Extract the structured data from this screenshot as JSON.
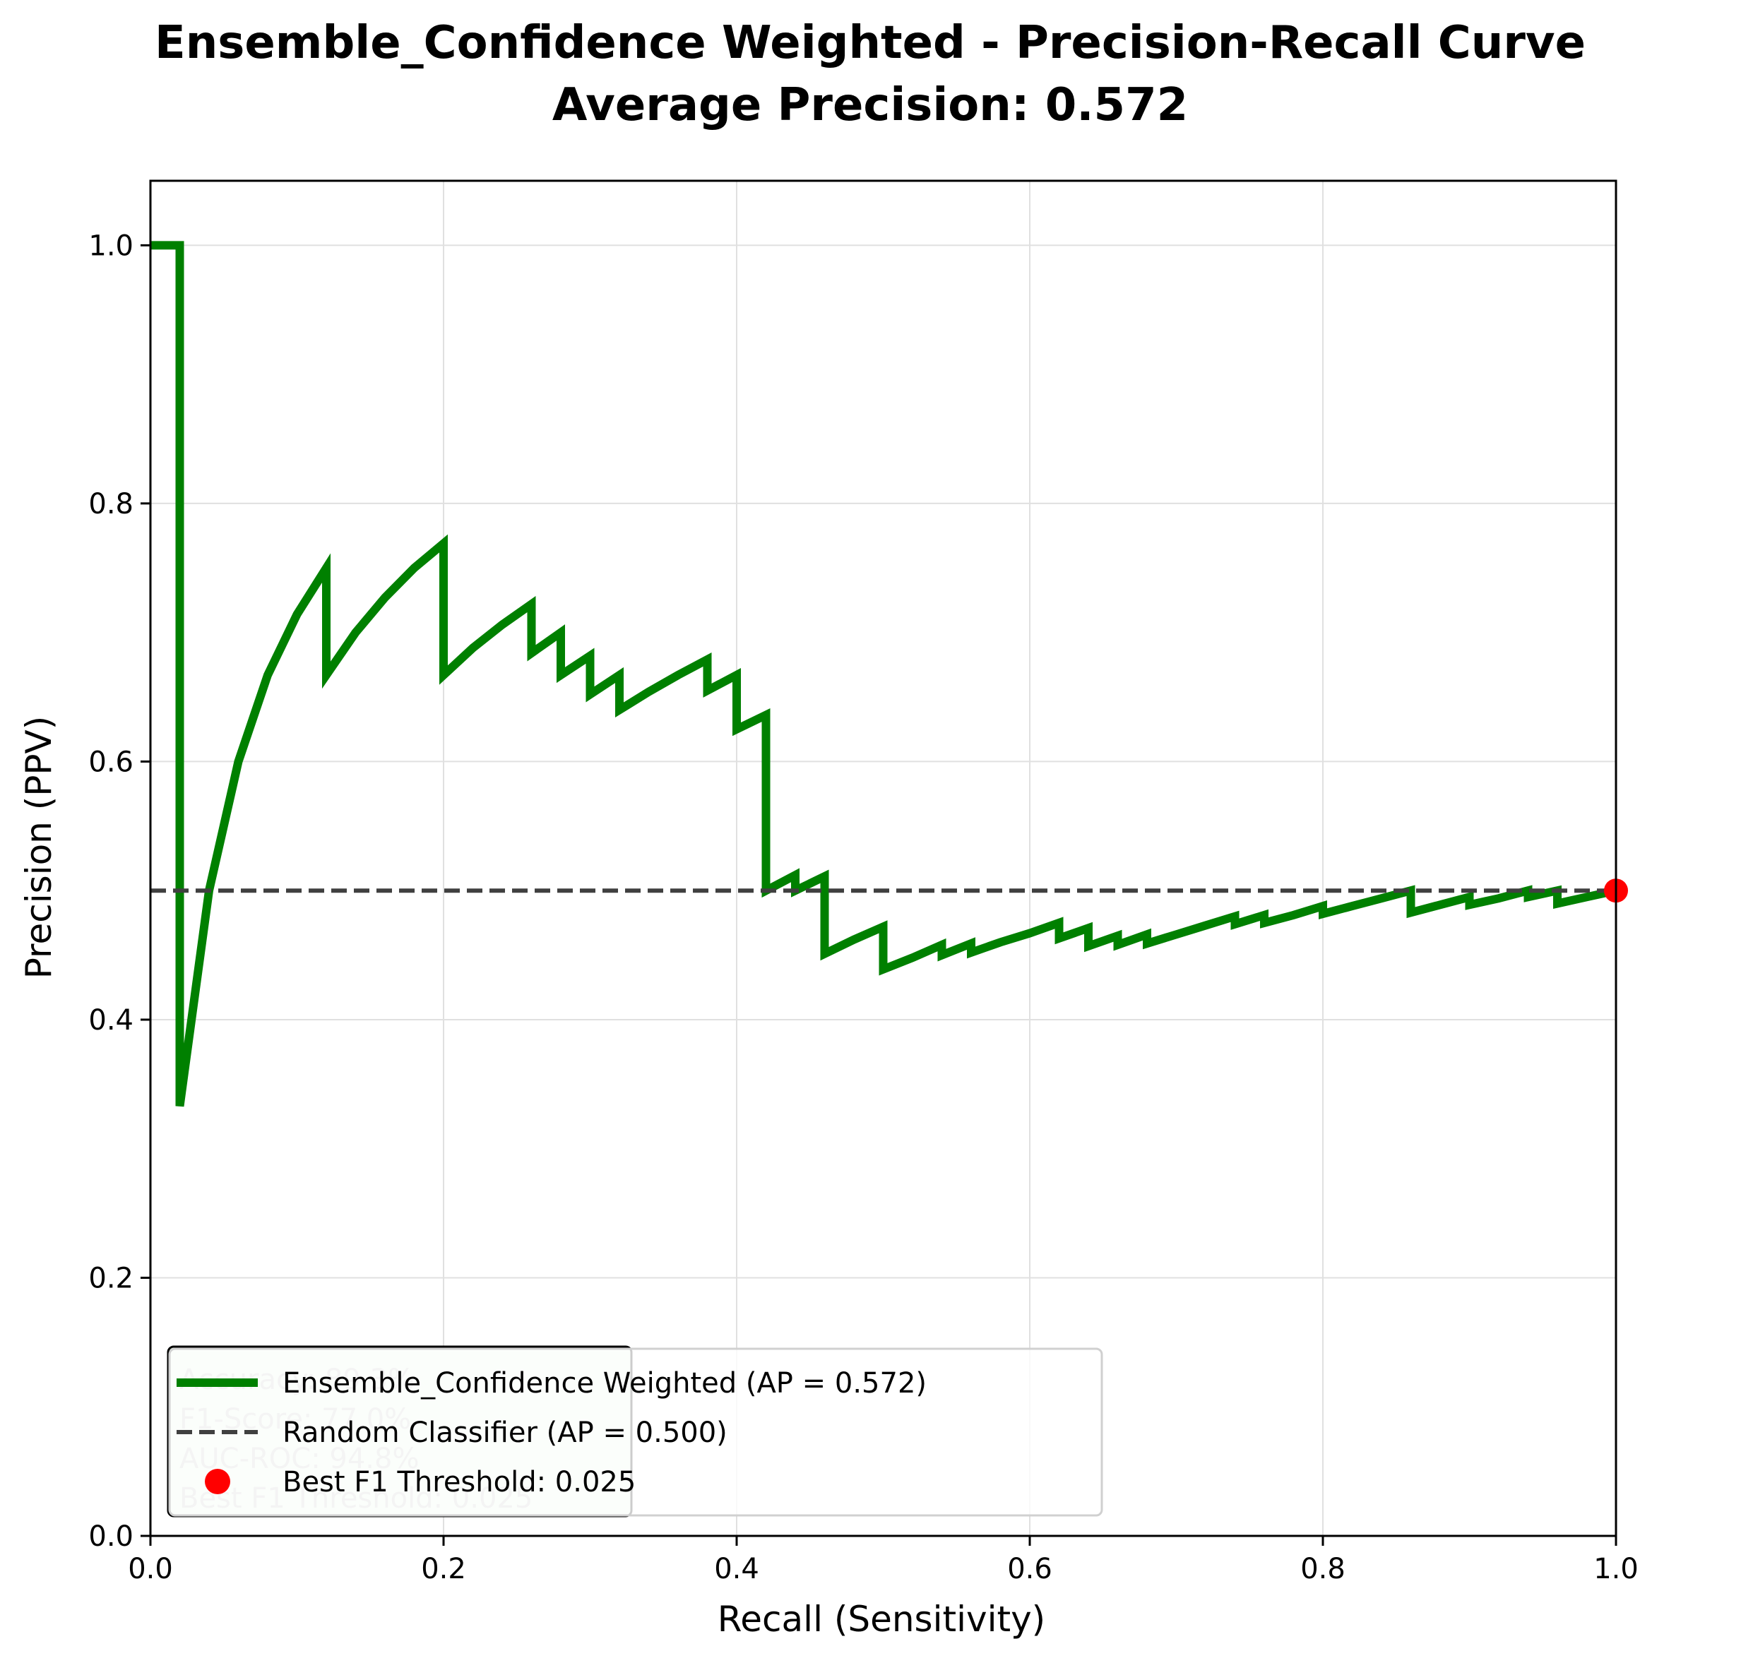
{
  "chart_data": {
    "type": "line",
    "title_line1": "Ensemble_Confidence Weighted - Precision-Recall Curve",
    "title_line2": "Average Precision: 0.572",
    "xlabel": "Recall (Sensitivity)",
    "ylabel": "Precision (PPV)",
    "xlim": [
      0.0,
      1.0
    ],
    "ylim": [
      0.0,
      1.05
    ],
    "x_ticks": [
      0.0,
      0.2,
      0.4,
      0.6,
      0.8,
      1.0
    ],
    "x_tick_labels": [
      "0.0",
      "0.2",
      "0.4",
      "0.6",
      "0.8",
      "1.0"
    ],
    "y_ticks": [
      0.0,
      0.2,
      0.4,
      0.6,
      0.8,
      1.0
    ],
    "y_tick_labels": [
      "0.0",
      "0.2",
      "0.4",
      "0.6",
      "0.8",
      "1.0"
    ],
    "grid": true,
    "legend_position": "lower-left",
    "stats_box": [
      "Accuracy: 89.3%",
      "F1-Score: 77.0%",
      "AUC-ROC: 94.8%",
      "Best F1 Threshold: 0.025"
    ],
    "series": [
      {
        "name": "Ensemble_Confidence Weighted (AP = 0.572)",
        "color": "#008000",
        "style": "solid",
        "points": [
          [
            0.0,
            1.0
          ],
          [
            0.02,
            1.0
          ],
          [
            0.02,
            0.333
          ],
          [
            0.04,
            0.5
          ],
          [
            0.06,
            0.6
          ],
          [
            0.08,
            0.667
          ],
          [
            0.1,
            0.714
          ],
          [
            0.12,
            0.75
          ],
          [
            0.12,
            0.667
          ],
          [
            0.14,
            0.7
          ],
          [
            0.16,
            0.727
          ],
          [
            0.18,
            0.75
          ],
          [
            0.2,
            0.769
          ],
          [
            0.2,
            0.667
          ],
          [
            0.22,
            0.688
          ],
          [
            0.24,
            0.706
          ],
          [
            0.26,
            0.722
          ],
          [
            0.26,
            0.684
          ],
          [
            0.28,
            0.7
          ],
          [
            0.28,
            0.667
          ],
          [
            0.3,
            0.682
          ],
          [
            0.3,
            0.652
          ],
          [
            0.32,
            0.667
          ],
          [
            0.32,
            0.64
          ],
          [
            0.34,
            0.654
          ],
          [
            0.36,
            0.667
          ],
          [
            0.38,
            0.679
          ],
          [
            0.38,
            0.655
          ],
          [
            0.4,
            0.667
          ],
          [
            0.4,
            0.625
          ],
          [
            0.42,
            0.636
          ],
          [
            0.42,
            0.5
          ],
          [
            0.44,
            0.512
          ],
          [
            0.44,
            0.5
          ],
          [
            0.46,
            0.511
          ],
          [
            0.46,
            0.451
          ],
          [
            0.48,
            0.462
          ],
          [
            0.5,
            0.472
          ],
          [
            0.5,
            0.439
          ],
          [
            0.52,
            0.448
          ],
          [
            0.54,
            0.458
          ],
          [
            0.54,
            0.45
          ],
          [
            0.56,
            0.459
          ],
          [
            0.56,
            0.452
          ],
          [
            0.58,
            0.46
          ],
          [
            0.6,
            0.467
          ],
          [
            0.62,
            0.475
          ],
          [
            0.62,
            0.463
          ],
          [
            0.64,
            0.471
          ],
          [
            0.64,
            0.457
          ],
          [
            0.66,
            0.465
          ],
          [
            0.66,
            0.458
          ],
          [
            0.68,
            0.466
          ],
          [
            0.68,
            0.459
          ],
          [
            0.7,
            0.466
          ],
          [
            0.72,
            0.473
          ],
          [
            0.74,
            0.48
          ],
          [
            0.74,
            0.474
          ],
          [
            0.76,
            0.481
          ],
          [
            0.76,
            0.475
          ],
          [
            0.78,
            0.481
          ],
          [
            0.8,
            0.488
          ],
          [
            0.8,
            0.482
          ],
          [
            0.82,
            0.488
          ],
          [
            0.84,
            0.494
          ],
          [
            0.86,
            0.5
          ],
          [
            0.86,
            0.483
          ],
          [
            0.88,
            0.489
          ],
          [
            0.9,
            0.495
          ],
          [
            0.9,
            0.489
          ],
          [
            0.92,
            0.494
          ],
          [
            0.94,
            0.5
          ],
          [
            0.94,
            0.495
          ],
          [
            0.96,
            0.5
          ],
          [
            0.96,
            0.49
          ],
          [
            0.98,
            0.495
          ],
          [
            1.0,
            0.5
          ]
        ]
      },
      {
        "name": "Random Classifier (AP = 0.500)",
        "color": "#404040",
        "style": "dashed",
        "points": [
          [
            0.0,
            0.5
          ],
          [
            1.0,
            0.5
          ]
        ]
      }
    ],
    "best_point": {
      "name": "Best F1 Threshold: 0.025",
      "x": 1.0,
      "y": 0.5,
      "color": "#ff0000"
    }
  }
}
